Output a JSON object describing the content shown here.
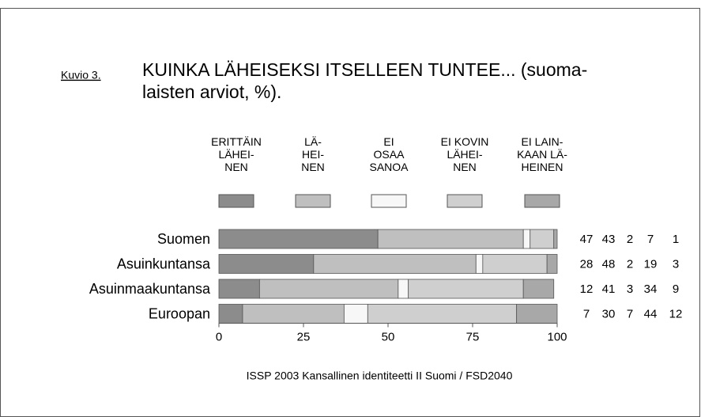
{
  "chart_data": {
    "type": "stacked-bar",
    "orientation": "horizontal",
    "figure_label": "Kuvio 3.",
    "title": [
      "KUINKA LÄHEISEKSI ITSELLEEN TUNTEE... (suoma-",
      "laisten arviot, %)."
    ],
    "categories": [
      "Suomen",
      "Asuinkuntansa",
      "Asuinmaakuntansa",
      "Euroopan"
    ],
    "series": [
      {
        "name": "ERITTÄIN\nLÄHEI-\nNEN",
        "color": "#8c8c8c",
        "values": [
          47,
          28,
          12,
          7
        ]
      },
      {
        "name": "LÄ-\nHEI-\nNEN",
        "color": "#bfbfbf",
        "values": [
          43,
          48,
          41,
          30
        ]
      },
      {
        "name": "EI\nOSAA\nSANOA",
        "color": "#f7f7f7",
        "values": [
          2,
          2,
          3,
          7
        ]
      },
      {
        "name": "EI KOVIN\nLÄHEI-\nNEN",
        "color": "#cfcfcf",
        "values": [
          7,
          19,
          34,
          44
        ]
      },
      {
        "name": "EI LAIN-\nKAAN LÄ-\nHEINEN",
        "color": "#a8a8a8",
        "values": [
          1,
          3,
          9,
          12
        ]
      }
    ],
    "xlim": [
      0,
      100
    ],
    "xticks": [
      0,
      25,
      50,
      75,
      100
    ],
    "source": "ISSP 2003  Kansallinen identiteetti II Suomi / FSD2040"
  }
}
